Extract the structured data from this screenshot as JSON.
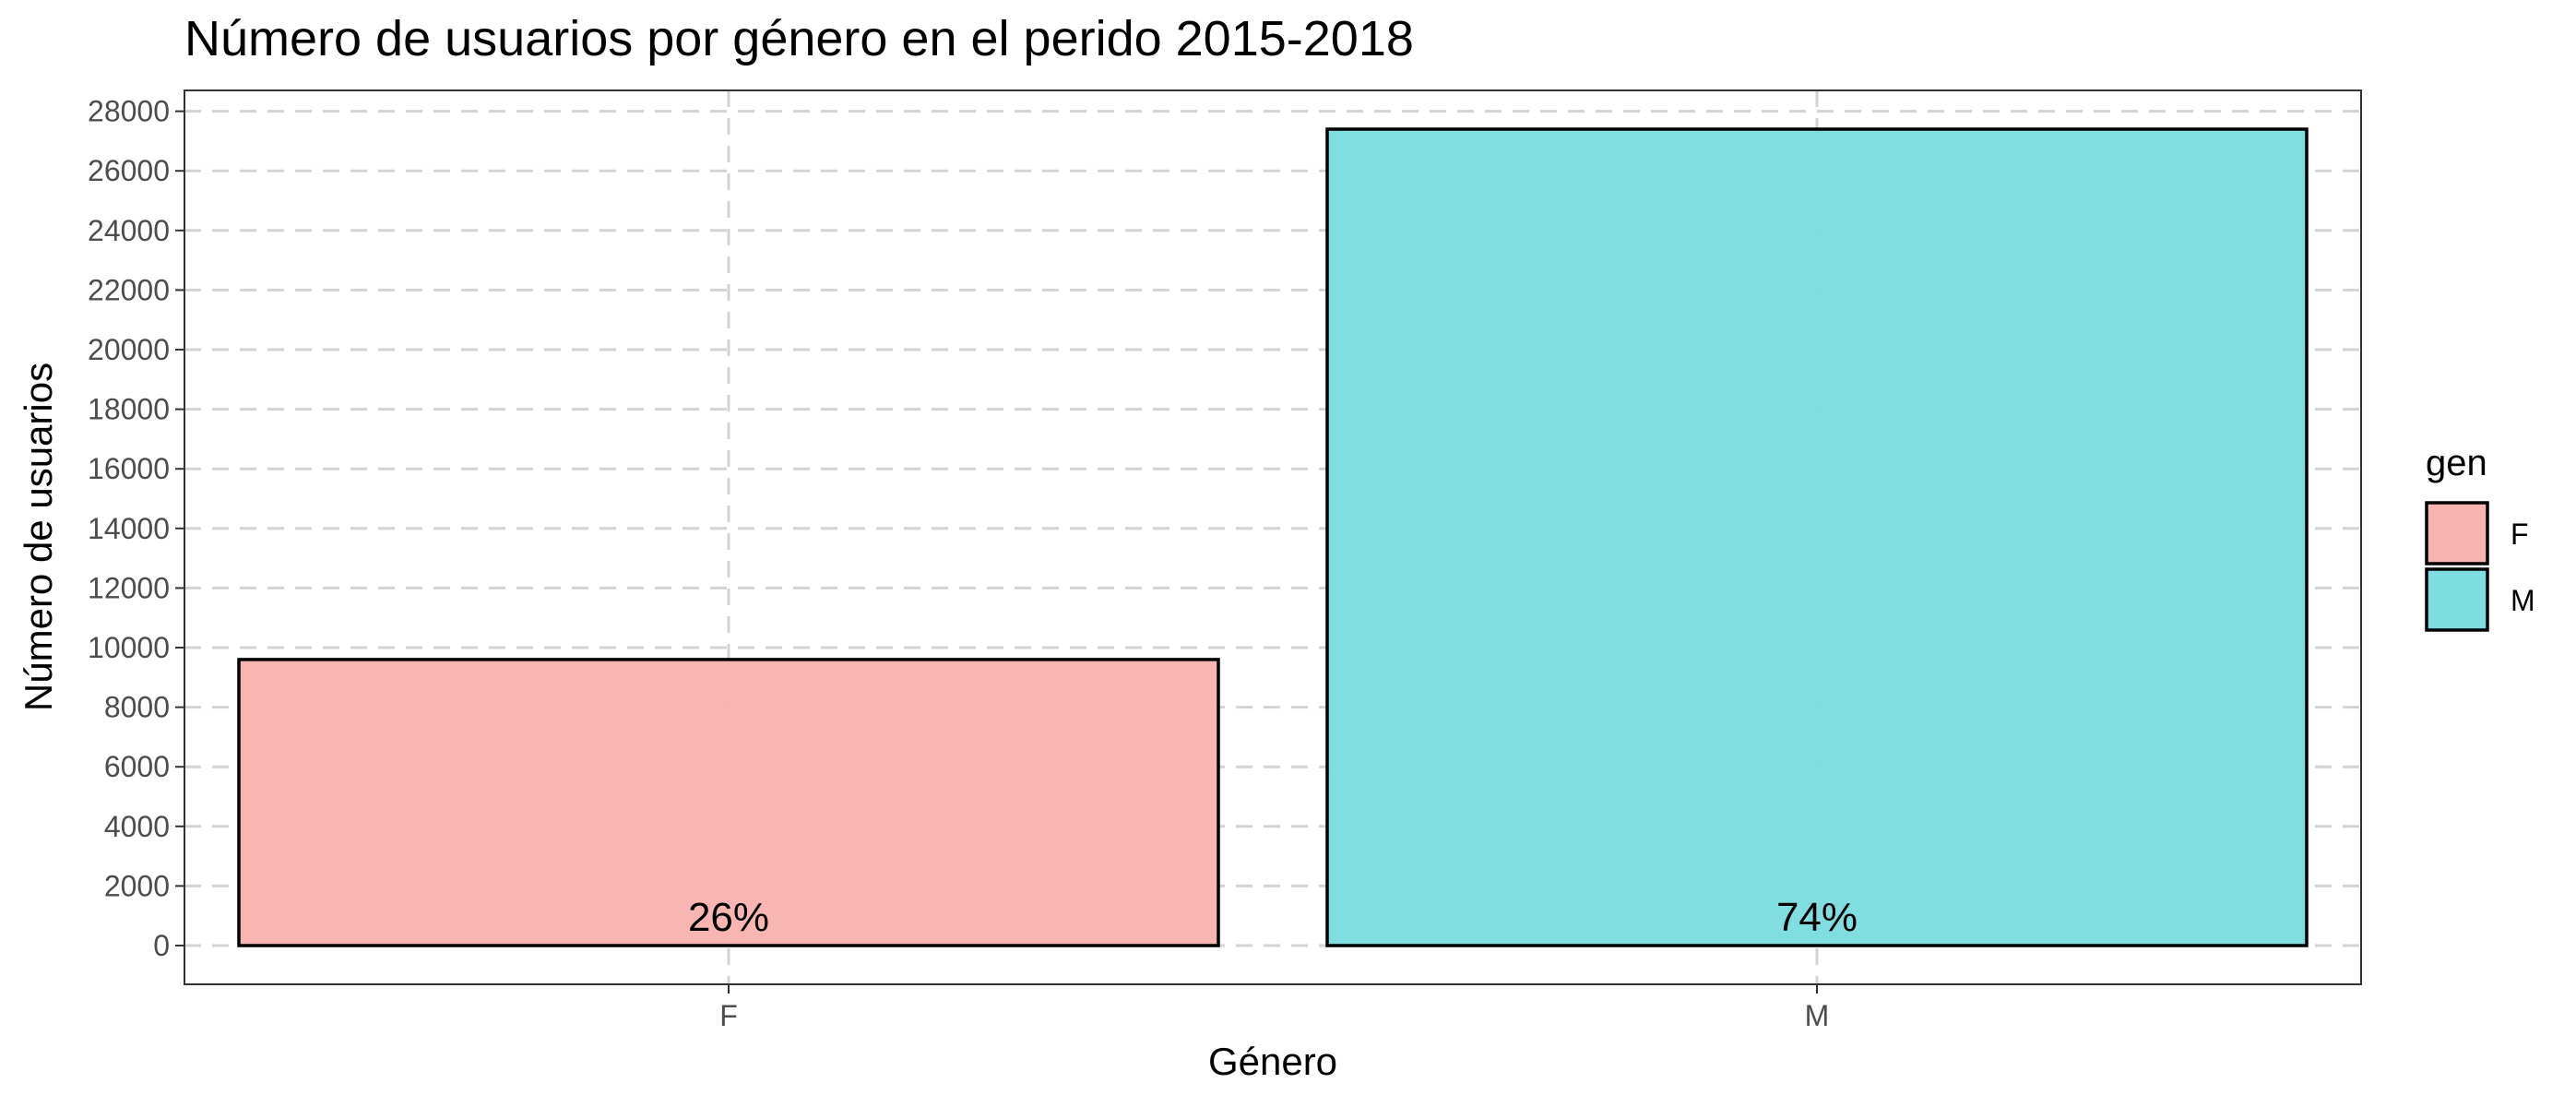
{
  "chart_data": {
    "type": "bar",
    "title": "Número de usuarios por género en el perido 2015-2018",
    "xlabel": "Género",
    "ylabel": "Número de usuarios",
    "categories": [
      "F",
      "M"
    ],
    "values": [
      9600,
      27400
    ],
    "data_labels": [
      "26%",
      "74%"
    ],
    "colors": [
      "#F8B4B0",
      "#7DDDDF"
    ],
    "bar_outline_color": "#000000",
    "ylim": [
      -1300,
      28700
    ],
    "yticks": [
      0,
      2000,
      4000,
      6000,
      8000,
      10000,
      12000,
      14000,
      16000,
      18000,
      20000,
      22000,
      24000,
      26000,
      28000
    ],
    "ytick_labels": [
      "0",
      "2000",
      "4000",
      "6000",
      "8000",
      "10000",
      "12000",
      "14000",
      "16000",
      "18000",
      "20000",
      "22000",
      "24000",
      "26000",
      "28000"
    ],
    "grid": true,
    "grid_style": "dashed",
    "legend": {
      "title": "gen",
      "entries": [
        "F",
        "M"
      ],
      "placement": "right"
    }
  }
}
